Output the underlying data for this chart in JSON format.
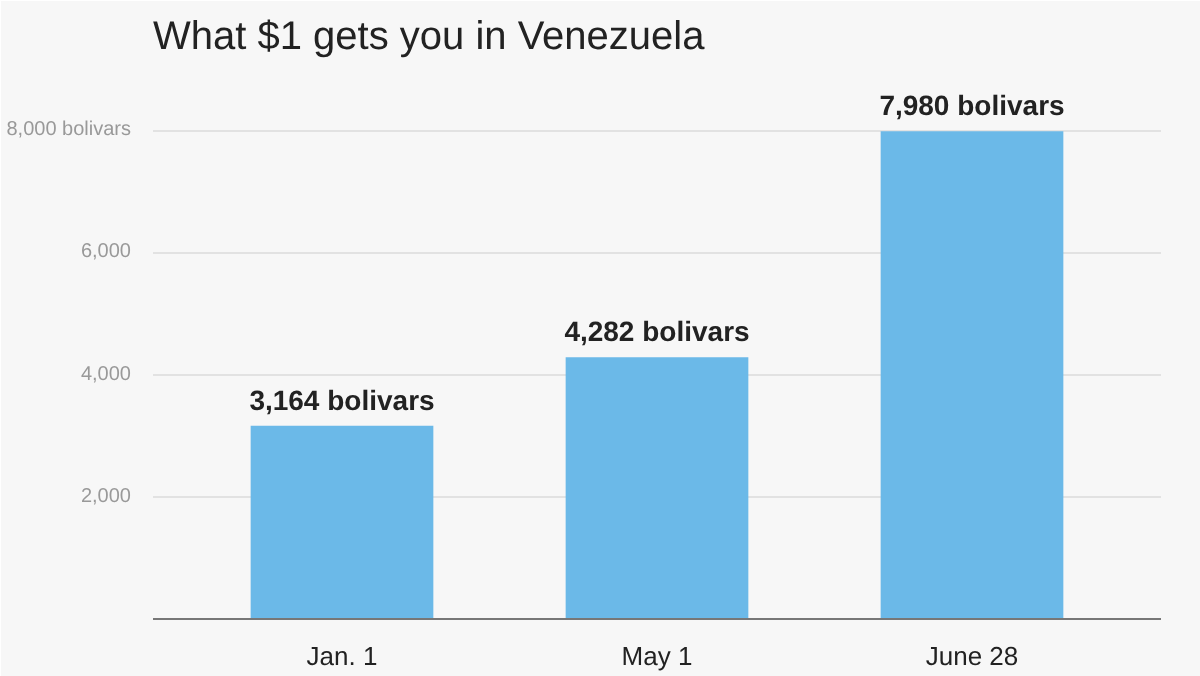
{
  "chart_data": {
    "type": "bar",
    "title": "What $1 gets you in Venezuela",
    "categories": [
      "Jan. 1",
      "May 1",
      "June 28"
    ],
    "values": [
      3164,
      4282,
      7980
    ],
    "value_labels": [
      "3,164 bolivars",
      "4,282 bolivars",
      "7,980 bolivars"
    ],
    "color": "#6bb9e8",
    "ylim": [
      0,
      9000
    ],
    "yticks": [
      {
        "value": 2000,
        "label": "2,000"
      },
      {
        "value": 4000,
        "label": "4,000"
      },
      {
        "value": 6000,
        "label": "6,000"
      },
      {
        "value": 8000,
        "label": "8,000 bolivars"
      }
    ],
    "grid": "y"
  }
}
